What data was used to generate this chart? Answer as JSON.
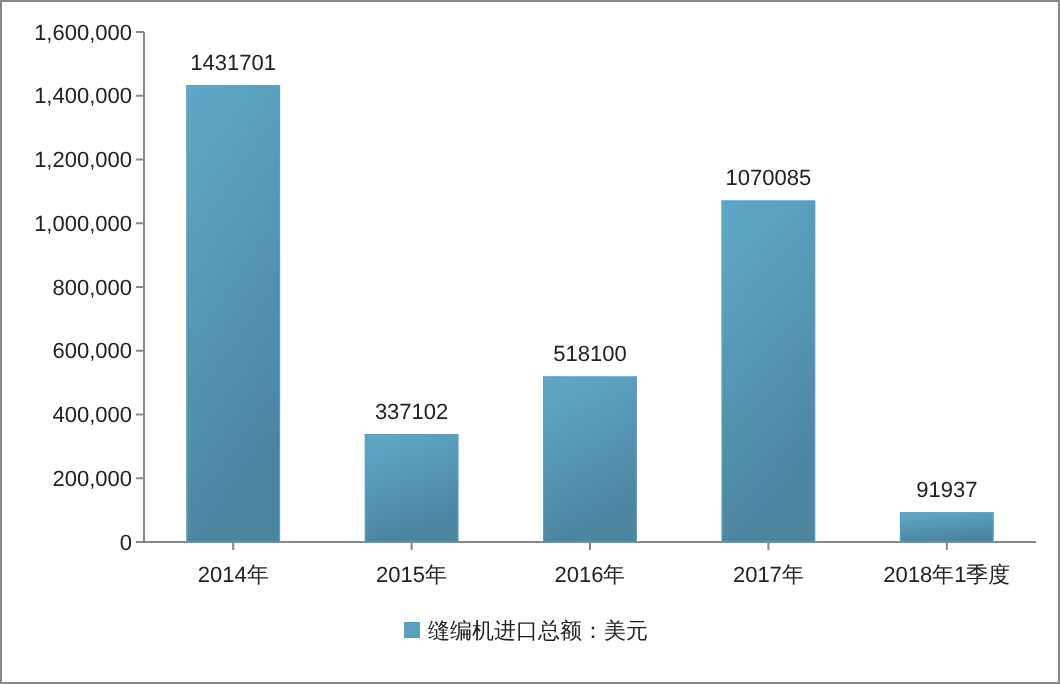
{
  "chart_data": {
    "type": "bar",
    "categories": [
      "2014年",
      "2015年",
      "2016年",
      "2017年",
      "2018年1季度"
    ],
    "series": [
      {
        "name": "缝编机进口总额：美元",
        "color": "#5a9fbf",
        "values": [
          1431701,
          337102,
          518100,
          1070085,
          91937
        ]
      }
    ],
    "ylim": [
      0,
      1600000
    ],
    "yticks": [
      {
        "value": 0,
        "label": "0"
      },
      {
        "value": 200000,
        "label": "200,000"
      },
      {
        "value": 400000,
        "label": "400,000"
      },
      {
        "value": 600000,
        "label": "600,000"
      },
      {
        "value": 800000,
        "label": "800,000"
      },
      {
        "value": 1000000,
        "label": "1,000,000"
      },
      {
        "value": 1200000,
        "label": "1,200,000"
      },
      {
        "value": 1400000,
        "label": "1,400,000"
      },
      {
        "value": 1600000,
        "label": "1,600,000"
      }
    ],
    "data_labels": true,
    "legend": "bottom",
    "grid": false
  }
}
